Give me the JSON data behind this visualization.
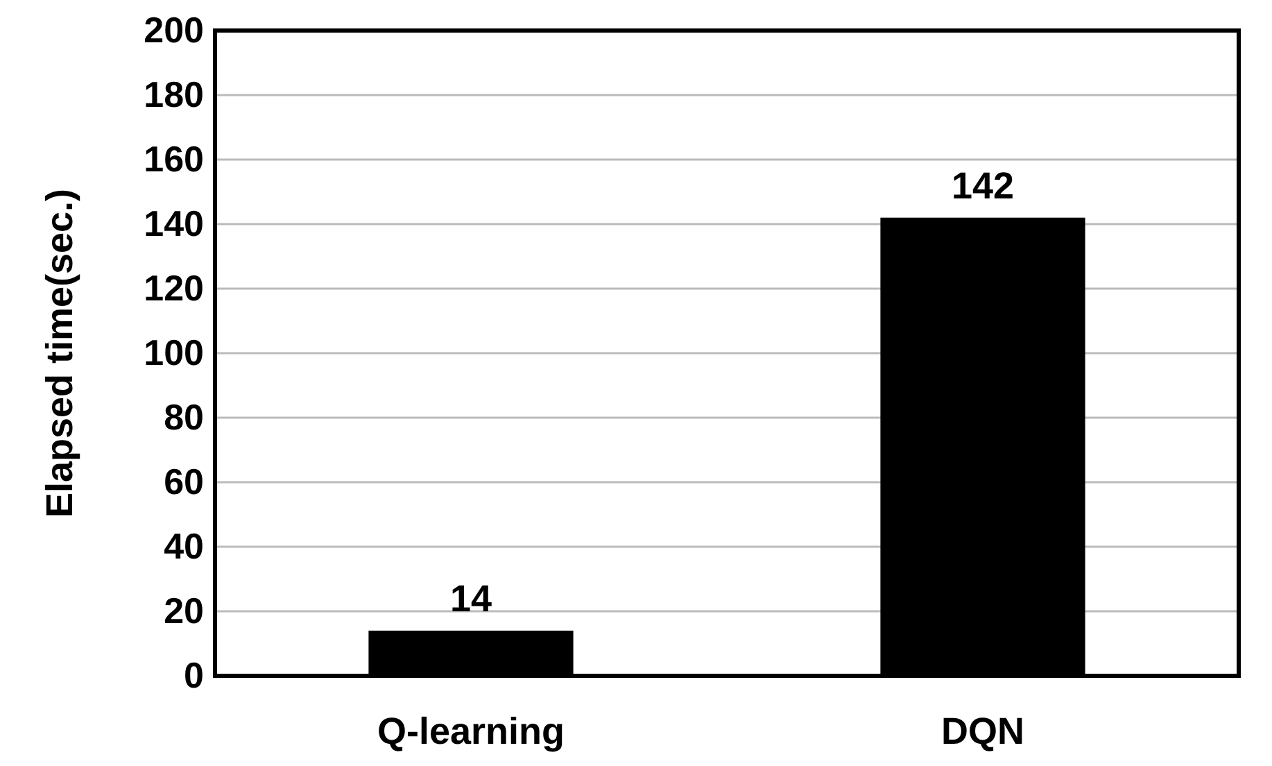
{
  "chart_data": {
    "type": "bar",
    "ylabel": "Elapsed time(sec.)",
    "categories": [
      "Q-learning",
      "DQN"
    ],
    "values": [
      14,
      142
    ],
    "color": "#000000",
    "data_labels": true,
    "ylim": [
      0,
      200
    ],
    "yticks": [
      0,
      20,
      40,
      60,
      80,
      100,
      120,
      140,
      160,
      180,
      200
    ],
    "grid": "y"
  }
}
